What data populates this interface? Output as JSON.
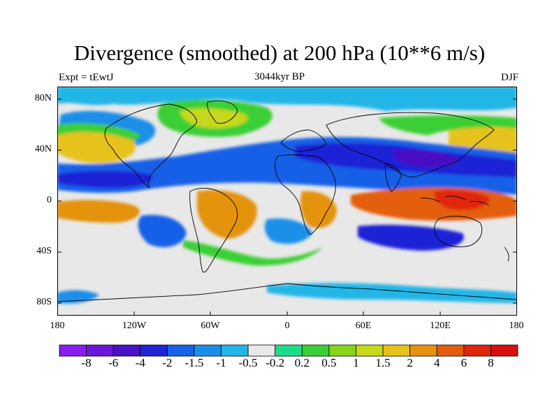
{
  "title": "Divergence (smoothed) at 200 hPa (10**6 m/s)",
  "subtitle_left": "Expt = tEwtJ",
  "subtitle_center": "3044kyr BP",
  "subtitle_right": "DJF",
  "lat_labels": [
    "80N",
    "40N",
    "0",
    "40S",
    "80S"
  ],
  "lon_labels": [
    "180",
    "120W",
    "60W",
    "0",
    "60E",
    "120E",
    "180"
  ],
  "colorbar": {
    "labels": [
      "-8",
      "-6",
      "-4",
      "-2",
      "-1.5",
      "-1",
      "-0.5",
      "-0.2",
      "0.2",
      "0.5",
      "1",
      "1.5",
      "2",
      "4",
      "6",
      "8"
    ],
    "colors": [
      "#8a1cf0",
      "#6b17d8",
      "#4a10c4",
      "#1f24d6",
      "#1760e8",
      "#1b8fe8",
      "#21b6e6",
      "#e8e8e8",
      "#1fdc8a",
      "#3bcf35",
      "#86d41c",
      "#c6d81a",
      "#e6c21a",
      "#e4930e",
      "#e35e0c",
      "#e0250e",
      "#d80f0f"
    ]
  },
  "map_style": {
    "zero_fill": "#e8e8e8",
    "coast": "#000000"
  }
}
